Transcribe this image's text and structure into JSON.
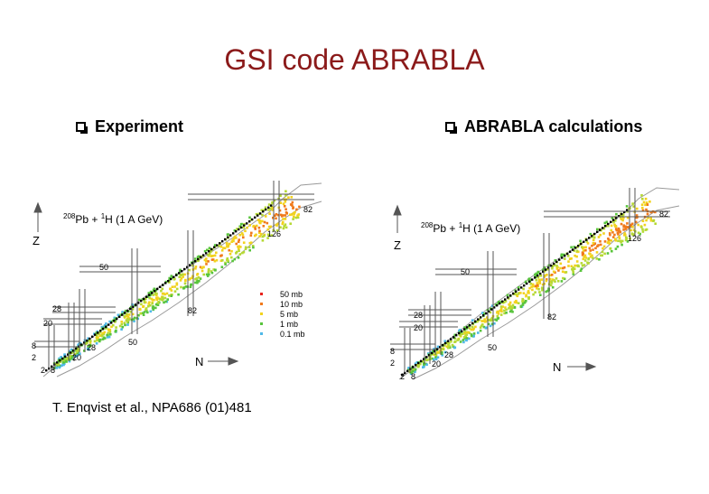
{
  "title": "GSI code ABRABLA",
  "bullets": {
    "left": "Experiment",
    "right": "ABRABLA calculations"
  },
  "citation": "T. Enqvist et al., NPA686 (01)481",
  "plots": [
    {
      "id": "left",
      "reaction": {
        "a_pb": "208",
        "pb": "Pb + ",
        "a_h": "1",
        "h": "H (1 A GeV)"
      },
      "axis_z": "Z",
      "axis_n": "N",
      "magic_labels": [
        "82",
        "126",
        "50",
        "28",
        "20",
        "8",
        "2",
        "82",
        "50",
        "28",
        "20",
        "2",
        "8"
      ],
      "legend": [
        {
          "label": "50 mb",
          "color": "#e8231c"
        },
        {
          "label": "10 mb",
          "color": "#f07a1c"
        },
        {
          "label": "5 mb",
          "color": "#f2d21e"
        },
        {
          "label": "1 mb",
          "color": "#58c43c"
        },
        {
          "label": "0.1 mb",
          "color": "#4fb8e8"
        }
      ]
    },
    {
      "id": "right",
      "reaction": {
        "a_pb": "208",
        "pb": "Pb + ",
        "a_h": "1",
        "h": "H (1 A GeV)"
      },
      "axis_z": "Z",
      "axis_n": "N",
      "magic_labels": [
        "82",
        "126",
        "50",
        "28",
        "20",
        "8",
        "2",
        "82",
        "50",
        "28",
        "20",
        "2",
        "8"
      ]
    }
  ]
}
